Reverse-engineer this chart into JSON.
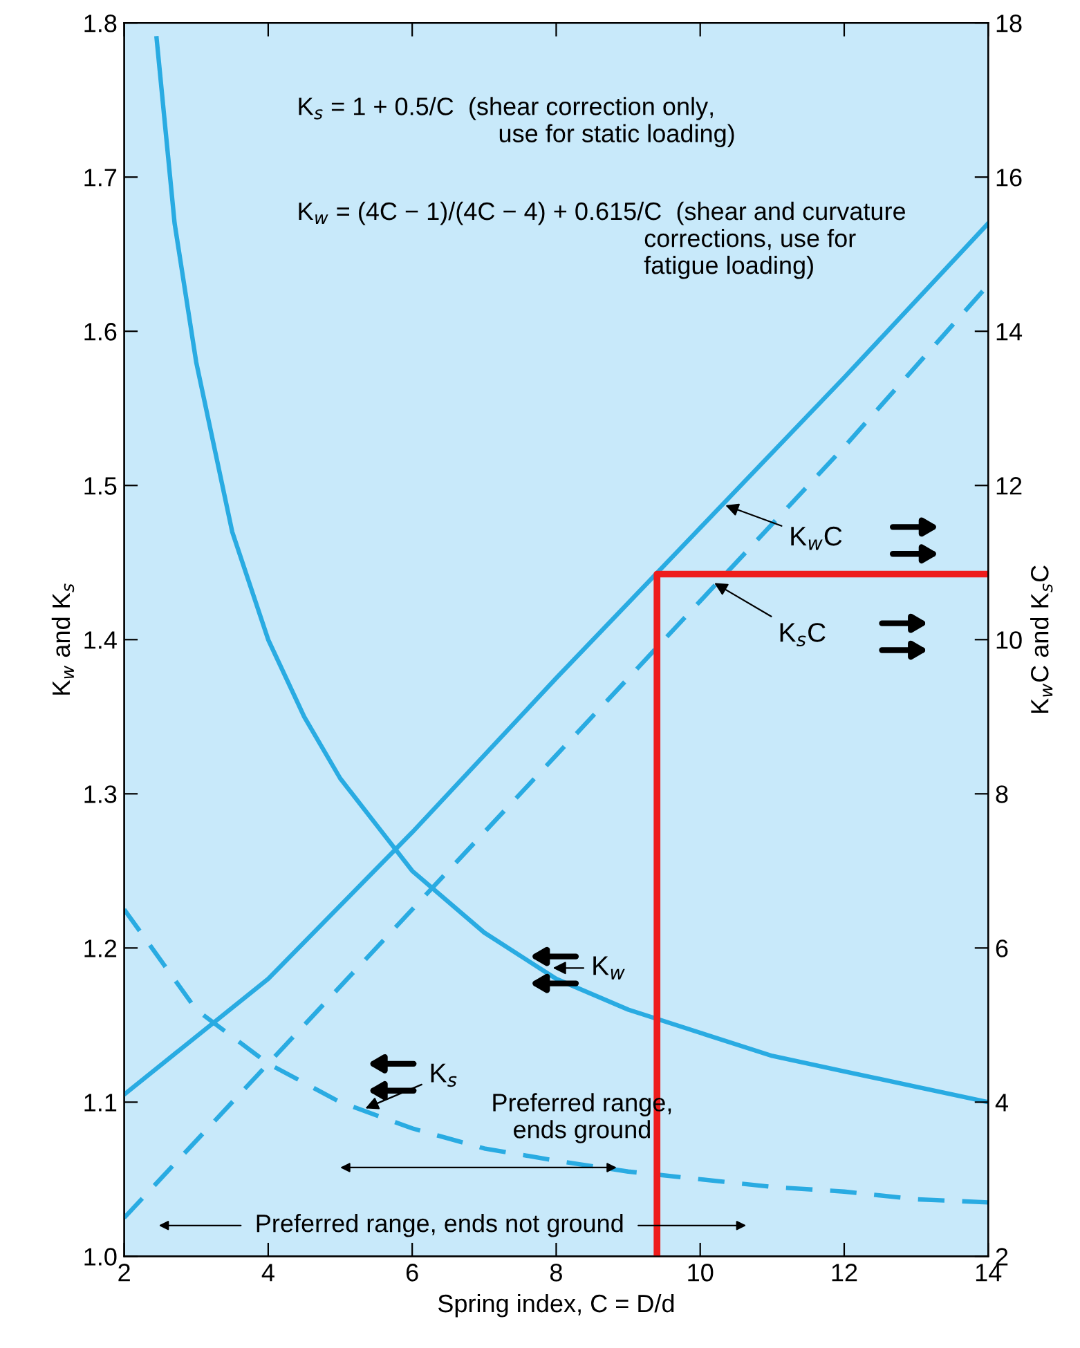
{
  "chart_data": {
    "type": "line",
    "xlabel": "Spring index, C = D/d",
    "ylabel": "K$_{w}$ and K$_{s}$",
    "y2label": "K$_{w}$C and K$_{s}$C",
    "xlim": [
      2,
      14
    ],
    "xticks": [
      2,
      4,
      6,
      8,
      10,
      12,
      14
    ],
    "ylim": [
      1.0,
      1.8
    ],
    "yticks": [
      {
        "value": 1.0,
        "label": "1.0"
      },
      1.1,
      1.2,
      1.3,
      1.4,
      1.5,
      1.6,
      1.7,
      1.8
    ],
    "y2lim": [
      2,
      18
    ],
    "y2ticks": [
      2,
      4,
      6,
      8,
      10,
      12,
      14,
      16,
      18
    ],
    "grid": false,
    "legend": false,
    "series": [
      {
        "color": "#29abe2",
        "line_style": "solid",
        "x": [
          2.45,
          2.7,
          3,
          3.5,
          4,
          4.5,
          5,
          5.5,
          6,
          7,
          8,
          9,
          10,
          11,
          12,
          13,
          14
        ],
        "values": [
          1.79,
          1.67,
          1.58,
          1.47,
          1.4,
          1.35,
          1.31,
          1.28,
          1.25,
          1.21,
          1.18,
          1.16,
          1.145,
          1.13,
          1.12,
          1.11,
          1.1
        ]
      },
      {
        "color": "#29abe2",
        "line_style": "dashed",
        "x": [
          2,
          3,
          4,
          5,
          6,
          7,
          8,
          9,
          10,
          11,
          12,
          13,
          14
        ],
        "values": [
          1.225,
          1.16,
          1.125,
          1.1,
          1.083,
          1.07,
          1.062,
          1.055,
          1.05,
          1.045,
          1.042,
          1.037,
          1.035
        ]
      },
      {
        "color": "#29abe2",
        "line_style": "solid",
        "axis": "y2",
        "x": [
          2,
          4,
          6,
          8,
          10,
          12,
          14
        ],
        "values": [
          4.1,
          5.6,
          7.5,
          9.5,
          11.45,
          13.4,
          15.4
        ]
      },
      {
        "color": "#29abe2",
        "line_style": "dashed",
        "axis": "y2",
        "x": [
          2,
          4,
          6,
          8,
          10,
          12,
          14
        ],
        "values": [
          2.5,
          4.5,
          6.5,
          8.5,
          10.5,
          12.5,
          14.6
        ]
      },
      {
        "color": "#ee1c1c",
        "line_style": "solid",
        "axis": "y2",
        "x": [
          9.4,
          9.4,
          14
        ],
        "values": [
          2,
          10.85,
          10.85
        ]
      }
    ],
    "annotations": [
      "K$_{s}$ = 1 + 0.5/C  (shear correction only,\n                             use for static loading)",
      "K$_{w}$ = (4C − 1)/(4C − 4) + 0.615/C  (shear and curvature\n                                                  corrections, use for\n                                                  fatigue loading)",
      {
        "text": "K$_{w}$C",
        "x": 10.3,
        "y": 1.488
      },
      {
        "text": "K$_{s}$C",
        "x": 10.15,
        "y": 1.438
      },
      {
        "text": "K$_{w}$",
        "x": 7.9,
        "y": 1.187
      },
      {
        "text": "K$_{s}$",
        "x": 5.3,
        "y": 1.095
      },
      "Preferred range,\nends ground",
      "Preferred range, ends not ground"
    ]
  }
}
